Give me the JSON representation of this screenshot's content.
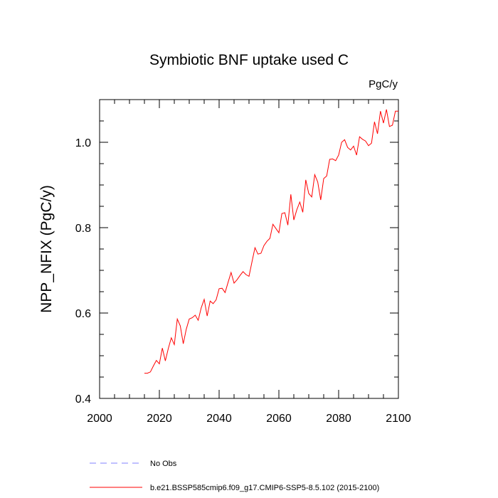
{
  "chart_data": {
    "type": "line",
    "title": "Symbiotic BNF uptake used C",
    "units": "PgC/y",
    "ylabel": "NPP_NFIX  (PgC/y)",
    "xlabel": "",
    "xlim": [
      2000,
      2100
    ],
    "ylim": [
      0.4,
      1.1
    ],
    "x_ticks": [
      2000,
      2020,
      2040,
      2060,
      2080,
      2100
    ],
    "x_tick_labels": [
      "2000",
      "2020",
      "2040",
      "2060",
      "2080",
      "2100"
    ],
    "x_minor_step": 5,
    "y_ticks": [
      0.4,
      0.6,
      0.8,
      1.0
    ],
    "y_tick_labels": [
      "0.4",
      "0.6",
      "0.8",
      "1.0"
    ],
    "y_minor_step": 0.05,
    "grid": false,
    "legend": {
      "placement": "bottom-left",
      "entries": [
        {
          "label": "No Obs",
          "color": "#8080ff",
          "style": "dashed"
        },
        {
          "label": "b.e21.BSSP585cmip6.f09_g17.CMIP6-SSP5-8.5.102 (2015-2100)",
          "color": "#ff0000",
          "style": "solid"
        }
      ]
    },
    "series": [
      {
        "name": "b.e21.BSSP585cmip6.f09_g17.CMIP6-SSP5-8.5.102 (2015-2100)",
        "color": "#ff0000",
        "x": [
          2015,
          2016,
          2017,
          2018,
          2019,
          2020,
          2021,
          2022,
          2023,
          2024,
          2025,
          2026,
          2027,
          2028,
          2029,
          2030,
          2031,
          2032,
          2033,
          2034,
          2035,
          2036,
          2037,
          2038,
          2039,
          2040,
          2041,
          2042,
          2043,
          2044,
          2045,
          2046,
          2047,
          2048,
          2049,
          2050,
          2051,
          2052,
          2053,
          2054,
          2055,
          2056,
          2057,
          2058,
          2059,
          2060,
          2061,
          2062,
          2063,
          2064,
          2065,
          2066,
          2067,
          2068,
          2069,
          2070,
          2071,
          2072,
          2073,
          2074,
          2075,
          2076,
          2077,
          2078,
          2079,
          2080,
          2081,
          2082,
          2083,
          2084,
          2085,
          2086,
          2087,
          2088,
          2089,
          2090,
          2091,
          2092,
          2093,
          2094,
          2095,
          2096,
          2097,
          2098,
          2099,
          2100
        ],
        "y": [
          0.459,
          0.459,
          0.462,
          0.476,
          0.489,
          0.481,
          0.518,
          0.488,
          0.517,
          0.542,
          0.526,
          0.586,
          0.57,
          0.528,
          0.562,
          0.586,
          0.589,
          0.595,
          0.583,
          0.612,
          0.632,
          0.593,
          0.628,
          0.622,
          0.631,
          0.657,
          0.658,
          0.648,
          0.672,
          0.695,
          0.67,
          0.678,
          0.688,
          0.697,
          0.69,
          0.686,
          0.72,
          0.753,
          0.738,
          0.74,
          0.758,
          0.768,
          0.775,
          0.808,
          0.798,
          0.788,
          0.833,
          0.835,
          0.806,
          0.878,
          0.818,
          0.842,
          0.86,
          0.836,
          0.912,
          0.88,
          0.872,
          0.924,
          0.907,
          0.865,
          0.915,
          0.921,
          0.96,
          0.961,
          0.957,
          0.97,
          1.0,
          1.006,
          0.988,
          0.982,
          0.991,
          0.97,
          1.013,
          1.007,
          1.003,
          0.992,
          0.998,
          1.048,
          1.02,
          1.073,
          1.045,
          1.077,
          1.037,
          1.04,
          1.073,
          1.073
        ]
      }
    ]
  }
}
